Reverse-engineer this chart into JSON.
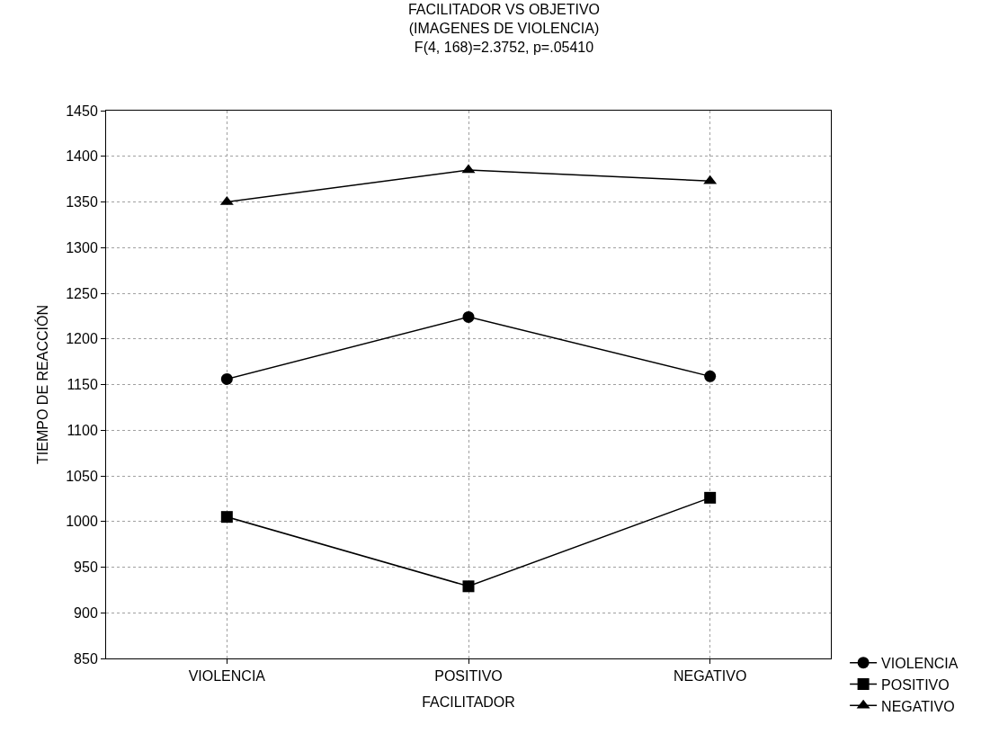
{
  "chart_data": {
    "type": "line",
    "title": "FACILITADOR VS OBJETIVO\n(IMAGENES DE VIOLENCIA)\nF(4, 168)=2.3752, p=.05410",
    "xlabel": "FACILITADOR",
    "ylabel": "TIEMPO DE REACCIÓN",
    "categories": [
      "VIOLENCIA",
      "POSITIVO",
      "NEGATIVO"
    ],
    "series": [
      {
        "name": "VIOLENCIA",
        "color": "#000000",
        "marker": "circle",
        "values": [
          1156,
          1224,
          1159
        ]
      },
      {
        "name": "POSITIVO",
        "color": "#000000",
        "marker": "square",
        "values": [
          1005,
          929,
          1026
        ]
      },
      {
        "name": "NEGATIVO",
        "color": "#000000",
        "marker": "triangle",
        "values": [
          1350,
          1385,
          1373
        ]
      }
    ],
    "ylim": [
      850,
      1450
    ],
    "yticks": [
      850,
      900,
      950,
      1000,
      1050,
      1100,
      1150,
      1200,
      1250,
      1300,
      1350,
      1400,
      1450
    ],
    "grid": true,
    "legend": "bottom right",
    "line_style": "solid"
  }
}
